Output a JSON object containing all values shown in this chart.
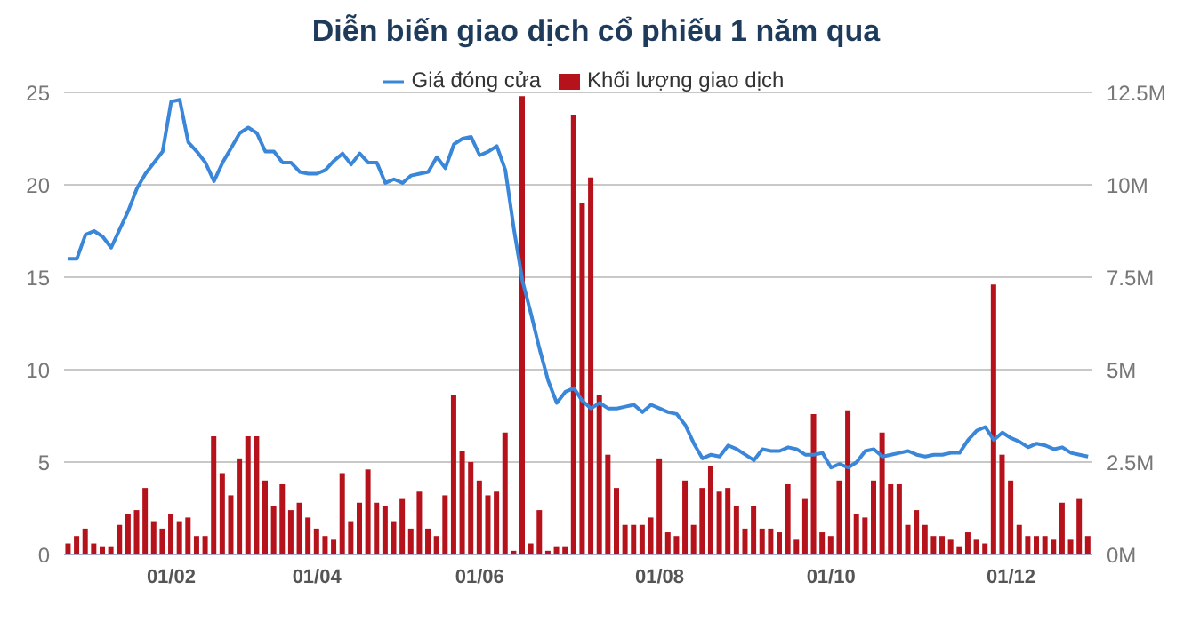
{
  "chart_data": {
    "type": "line",
    "title": "Diễn biến giao dịch cổ phiếu 1 năm qua",
    "categories": [
      null,
      null,
      null,
      null,
      null,
      null,
      null,
      null,
      null,
      null,
      null,
      null,
      "01/02",
      null,
      null,
      null,
      null,
      null,
      null,
      null,
      null,
      null,
      null,
      null,
      null,
      null,
      null,
      null,
      null,
      "01/04",
      null,
      null,
      null,
      null,
      null,
      null,
      null,
      null,
      null,
      null,
      null,
      null,
      null,
      null,
      null,
      null,
      null,
      null,
      "01/06",
      null,
      null,
      null,
      null,
      null,
      null,
      null,
      null,
      null,
      null,
      null,
      null,
      null,
      null,
      null,
      null,
      null,
      null,
      null,
      null,
      "01/08",
      null,
      null,
      null,
      null,
      null,
      null,
      null,
      null,
      null,
      null,
      null,
      null,
      null,
      null,
      null,
      null,
      null,
      null,
      null,
      "01/10",
      null,
      null,
      null,
      null,
      null,
      null,
      null,
      null,
      null,
      null,
      null,
      null,
      null,
      null,
      null,
      null,
      null,
      null,
      null,
      null,
      "01/12",
      null,
      null,
      null,
      null,
      null,
      null,
      null,
      null,
      null
    ],
    "series": [
      {
        "name": "Khối lượng giao dịch",
        "type": "bar",
        "axis": "y2",
        "color": "#b5121b",
        "values": [
          0.3,
          0.5,
          0.7,
          0.3,
          0.2,
          0.2,
          0.8,
          1.1,
          1.2,
          1.8,
          0.9,
          0.7,
          1.1,
          0.9,
          1.0,
          0.5,
          0.5,
          3.2,
          2.2,
          1.6,
          2.6,
          3.2,
          3.2,
          2.0,
          1.3,
          1.9,
          1.2,
          1.4,
          1.0,
          0.7,
          0.5,
          0.4,
          2.2,
          0.9,
          1.4,
          2.3,
          1.4,
          1.3,
          0.9,
          1.5,
          0.7,
          1.7,
          0.7,
          0.5,
          1.6,
          4.3,
          2.8,
          2.5,
          2.0,
          1.6,
          1.7,
          3.3,
          0.1,
          12.4,
          0.3,
          1.2,
          0.1,
          0.2,
          0.2,
          11.9,
          9.5,
          10.2,
          4.3,
          2.7,
          1.8,
          0.8,
          0.8,
          0.8,
          1.0,
          2.6,
          0.6,
          0.5,
          2.0,
          0.8,
          1.8,
          2.4,
          1.7,
          1.8,
          1.3,
          0.7,
          1.3,
          0.7,
          0.7,
          0.6,
          1.9,
          0.4,
          1.5,
          3.8,
          0.6,
          0.5,
          2.0,
          3.9,
          1.1,
          1.0,
          2.0,
          3.3,
          1.9,
          1.9,
          0.8,
          1.2,
          0.8,
          0.5,
          0.5,
          0.4,
          0.2,
          0.6,
          0.4,
          0.3,
          7.3,
          2.7,
          2.0,
          0.8,
          0.5,
          0.5,
          0.5,
          0.4,
          1.4,
          0.4,
          1.5,
          0.5
        ]
      },
      {
        "name": "Giá đóng cửa",
        "color": "#3a86d8",
        "values": [
          16.0,
          16.0,
          17.3,
          17.5,
          17.2,
          16.6,
          17.6,
          18.6,
          19.8,
          20.6,
          21.2,
          21.8,
          24.5,
          24.6,
          22.3,
          21.8,
          21.2,
          20.2,
          21.2,
          22.0,
          22.8,
          23.1,
          22.8,
          21.8,
          21.8,
          21.2,
          21.2,
          20.7,
          20.6,
          20.6,
          20.8,
          21.3,
          21.7,
          21.1,
          21.7,
          21.2,
          21.2,
          20.1,
          20.3,
          20.1,
          20.5,
          20.6,
          20.7,
          21.5,
          20.9,
          22.2,
          22.5,
          22.6,
          21.6,
          21.8,
          22.1,
          20.8,
          17.6,
          14.8,
          13.0,
          11.1,
          9.4,
          8.2,
          8.8,
          9.0,
          8.3,
          7.9,
          8.2,
          7.9,
          7.9,
          8.0,
          8.1,
          7.7,
          8.1,
          7.9,
          7.7,
          7.6,
          7.0,
          6.0,
          5.2,
          5.4,
          5.3,
          5.9,
          5.7,
          5.4,
          5.1,
          5.7,
          5.6,
          5.6,
          5.8,
          5.7,
          5.4,
          5.4,
          5.5,
          4.7,
          4.9,
          4.7,
          5.0,
          5.6,
          5.7,
          5.3,
          5.4,
          5.5,
          5.6,
          5.4,
          5.3,
          5.4,
          5.4,
          5.5,
          5.5,
          6.2,
          6.7,
          6.9,
          6.2,
          6.6,
          6.3,
          6.1,
          5.8,
          6.0,
          5.9,
          5.7,
          5.8,
          5.5,
          5.4,
          5.3
        ]
      }
    ],
    "ylim": [
      0,
      25
    ],
    "yticks": [
      0,
      5,
      10,
      15,
      20,
      25
    ],
    "y2lim": [
      0,
      12.5
    ],
    "y2ticks": [
      {
        "value": 0,
        "label": "0M"
      },
      {
        "value": 2.5,
        "label": "2.5M"
      },
      {
        "value": 5,
        "label": "5M"
      },
      {
        "value": 7.5,
        "label": "7.5M"
      },
      {
        "value": 10,
        "label": "10M"
      },
      {
        "value": 12.5,
        "label": "12.5M"
      }
    ],
    "grid": "y",
    "legend": "top",
    "marker": "none",
    "line_style": "solid"
  }
}
